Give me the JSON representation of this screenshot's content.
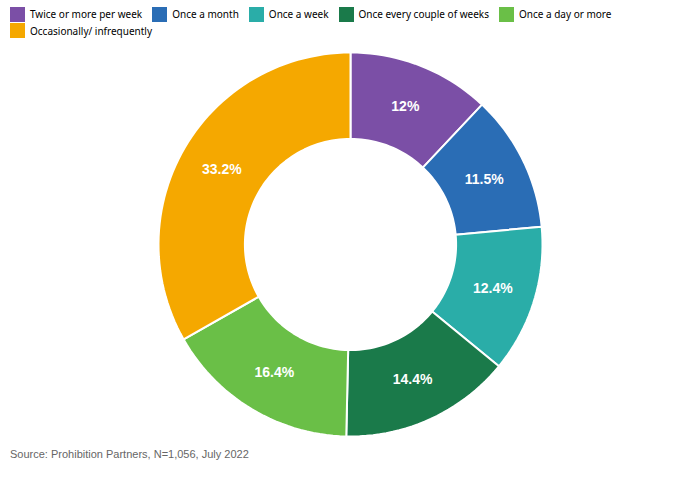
{
  "chart_data": {
    "type": "donut",
    "categories": [
      "Twice or more per week",
      "Once a month",
      "Once a week",
      "Once every couple of weeks",
      "Once a day or more",
      "Occasionally/ infrequently"
    ],
    "values": [
      12.0,
      11.5,
      12.4,
      14.4,
      16.4,
      33.2
    ],
    "value_labels": [
      "12%",
      "11.5%",
      "12.4%",
      "14.4%",
      "16.4%",
      "33.2%"
    ],
    "colors": [
      "#7b4fa6",
      "#2a6db5",
      "#2aada8",
      "#1a7a4a",
      "#6abf47",
      "#f5a800"
    ],
    "data_labels": true,
    "legend": "top",
    "caption": "Source: Prohibition Partners, N=1,056, July 2022"
  }
}
